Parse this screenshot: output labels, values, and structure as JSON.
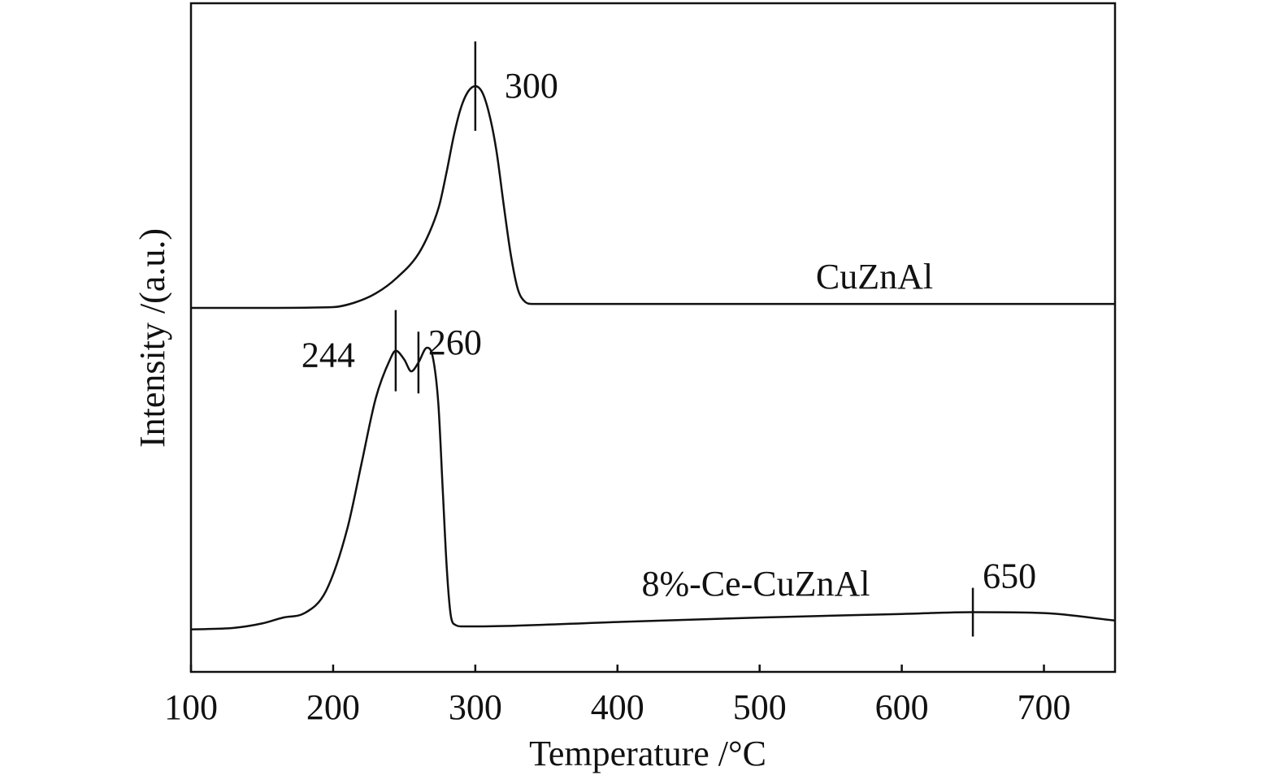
{
  "chart_data": {
    "type": "line",
    "xlabel": "Temperature /°C",
    "ylabel": "Intensity /(a.u.)",
    "xlim": [
      100,
      750
    ],
    "xticks": [
      100,
      200,
      300,
      400,
      500,
      600,
      700
    ],
    "yticks_shown": false,
    "grid": false,
    "line_color": "#111111",
    "series": [
      {
        "name": "CuZnAl",
        "x": [
          100,
          150,
          200,
          215,
          230,
          245,
          260,
          270,
          275,
          280,
          285,
          290,
          295,
          300,
          305,
          310,
          315,
          320,
          325,
          330,
          335,
          340,
          360,
          400,
          500,
          600,
          700,
          750
        ],
        "y": [
          0.4,
          0.4,
          0.43,
          0.6,
          0.95,
          1.55,
          2.45,
          3.55,
          4.35,
          5.6,
          6.95,
          8.0,
          8.6,
          8.8,
          8.55,
          7.7,
          6.3,
          4.3,
          2.4,
          1.1,
          0.63,
          0.55,
          0.55,
          0.55,
          0.55,
          0.55,
          0.55,
          0.55
        ]
      },
      {
        "name": "8%-Ce-CuZnAl",
        "x": [
          100,
          130,
          150,
          165,
          180,
          195,
          210,
          220,
          230,
          240,
          244,
          250,
          255,
          260,
          266,
          270,
          274,
          277,
          280,
          283,
          286,
          290,
          300,
          400,
          500,
          600,
          650,
          700,
          750
        ],
        "y": [
          0.2,
          0.25,
          0.4,
          0.6,
          0.75,
          1.5,
          3.6,
          5.8,
          8.0,
          9.3,
          9.6,
          9.3,
          8.9,
          9.2,
          9.7,
          9.4,
          7.8,
          5.0,
          2.2,
          0.6,
          0.35,
          0.3,
          0.3,
          0.45,
          0.6,
          0.72,
          0.78,
          0.75,
          0.5
        ]
      }
    ],
    "annotations": [
      {
        "series": "CuZnAl",
        "x": 300,
        "label": "300"
      },
      {
        "series": "8%-Ce-CuZnAl",
        "x": 244,
        "label": "244"
      },
      {
        "series": "8%-Ce-CuZnAl",
        "x": 260,
        "label": "260"
      },
      {
        "series": "8%-Ce-CuZnAl",
        "x": 650,
        "label": "650"
      }
    ]
  }
}
